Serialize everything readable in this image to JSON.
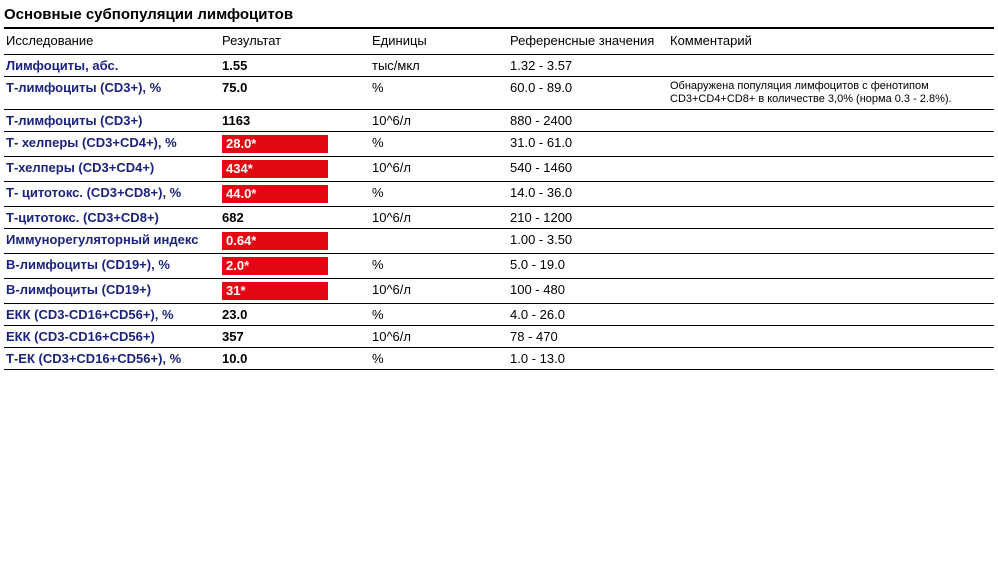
{
  "title": "Основные субпопуляции лимфоцитов",
  "columns": {
    "test": "Исследование",
    "result": "Результат",
    "units": "Единицы",
    "ref": "Референсные значения",
    "comment": "Комментарий"
  },
  "rows": [
    {
      "test": "Лимфоциты, абс.",
      "result": "1.55",
      "flag": false,
      "units": "тыс/мкл",
      "ref": "1.32 - 3.57",
      "comment": ""
    },
    {
      "test": "Т-лимфоциты (CD3+), %",
      "result": "75.0",
      "flag": false,
      "units": "%",
      "ref": "60.0 - 89.0",
      "comment": "Обнаружена популяция лимфоцитов с фенотипом CD3+CD4+CD8+ в количестве 3,0% (норма 0.3 - 2.8%)."
    },
    {
      "test": "Т-лимфоциты (CD3+)",
      "result": "1163",
      "flag": false,
      "units": "10^6/л",
      "ref": "880 - 2400",
      "comment": ""
    },
    {
      "test": "Т- хелперы (CD3+CD4+), %",
      "result": "28.0*",
      "flag": true,
      "units": "%",
      "ref": "31.0 - 61.0",
      "comment": ""
    },
    {
      "test": "Т-хелперы (CD3+CD4+)",
      "result": "434*",
      "flag": true,
      "units": "10^6/л",
      "ref": "540 - 1460",
      "comment": ""
    },
    {
      "test": "Т- цитотокс. (CD3+CD8+), %",
      "result": "44.0*",
      "flag": true,
      "units": "%",
      "ref": "14.0 - 36.0",
      "comment": ""
    },
    {
      "test": "Т-цитотокс. (CD3+CD8+)",
      "result": "682",
      "flag": false,
      "units": "10^6/л",
      "ref": "210 - 1200",
      "comment": ""
    },
    {
      "test": "Иммунорегуляторный индекс",
      "result": "0.64*",
      "flag": true,
      "units": "",
      "ref": "1.00 - 3.50",
      "comment": ""
    },
    {
      "test": "В-лимфоциты (CD19+), %",
      "result": "2.0*",
      "flag": true,
      "units": "%",
      "ref": "5.0 - 19.0",
      "comment": ""
    },
    {
      "test": "В-лимфоциты (CD19+)",
      "result": "31*",
      "flag": true,
      "units": "10^6/л",
      "ref": "100 - 480",
      "comment": ""
    },
    {
      "test": "ЕКК (CD3-CD16+CD56+), %",
      "result": "23.0",
      "flag": false,
      "units": "%",
      "ref": "4.0 - 26.0",
      "comment": ""
    },
    {
      "test": "ЕКК (CD3-CD16+CD56+)",
      "result": "357",
      "flag": false,
      "units": "10^6/л",
      "ref": "78 - 470",
      "comment": ""
    },
    {
      "test": "Т-ЕК (CD3+CD16+CD56+), %",
      "result": "10.0",
      "flag": false,
      "units": "%",
      "ref": "1.0 - 13.0",
      "comment": ""
    }
  ]
}
